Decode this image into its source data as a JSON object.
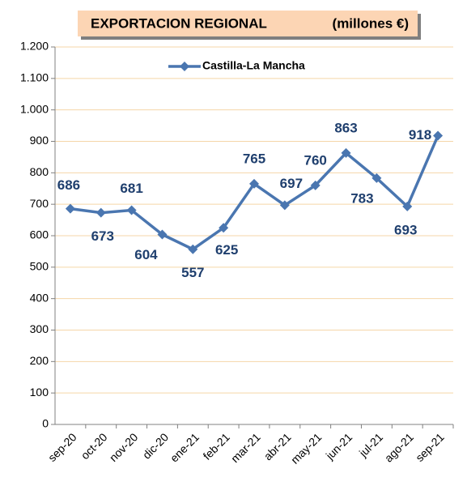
{
  "chart_data": {
    "type": "line",
    "title": "EXPORTACION REGIONAL",
    "subtitle": "(millones €)",
    "categories": [
      "sep-20",
      "oct-20",
      "nov-20",
      "dic-20",
      "ene-21",
      "feb-21",
      "mar-21",
      "abr-21",
      "may-21",
      "jun-21",
      "jul-21",
      "ago-21",
      "sep-21"
    ],
    "series": [
      {
        "name": "Castilla-La Mancha",
        "color": "#4a76b0",
        "values": [
          686,
          673,
          681,
          604,
          557,
          625,
          765,
          697,
          760,
          863,
          783,
          693,
          918
        ]
      }
    ],
    "ylim": [
      0,
      1200
    ],
    "yticks": [
      0,
      100,
      200,
      300,
      400,
      500,
      600,
      700,
      800,
      900,
      {
        "value": 1000,
        "label": "1.000"
      },
      {
        "value": 1100,
        "label": "1.100"
      },
      {
        "value": 1200,
        "label": "1.200"
      }
    ],
    "grid": true,
    "legend": "top"
  }
}
